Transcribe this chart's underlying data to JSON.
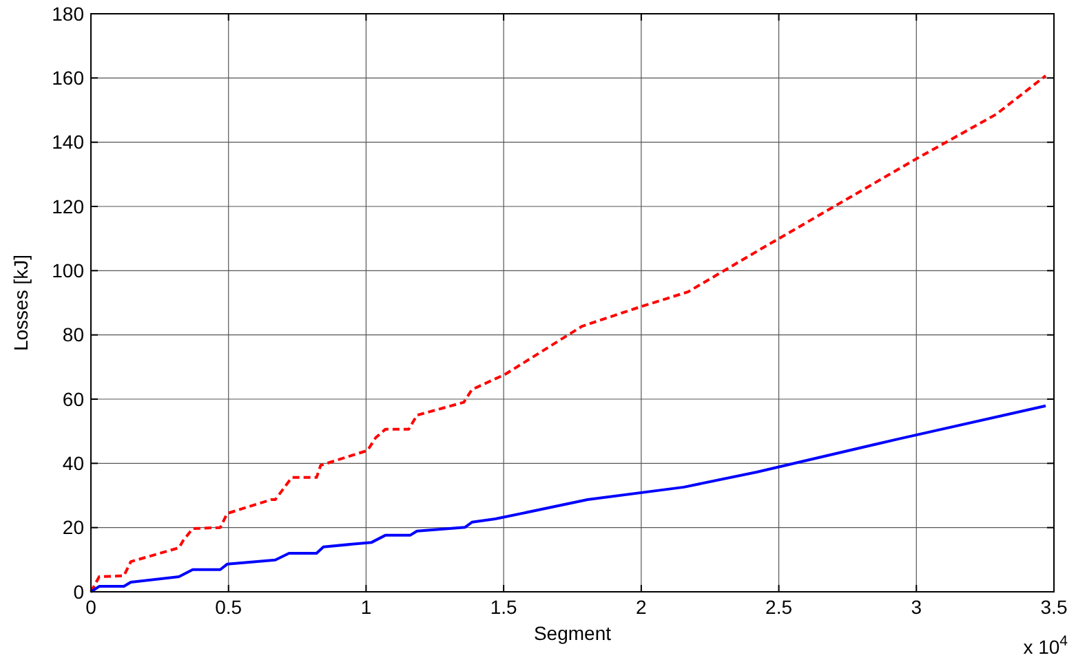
{
  "chart_data": {
    "type": "line",
    "xlabel": "Segment",
    "ylabel": "Losses [kJ]",
    "annotations": [
      "x 10$^{4}$"
    ],
    "xlim": [
      0,
      3.5
    ],
    "xticks": [
      0,
      0.5,
      1,
      1.5,
      2,
      2.5,
      3,
      3.5
    ],
    "ylim": [
      0,
      180
    ],
    "yticks": [
      0,
      20,
      40,
      60,
      80,
      100,
      120,
      140,
      160,
      180
    ],
    "grid": true,
    "series": [
      {
        "color": "#ff0000",
        "line_style": "dashed",
        "x": [
          0,
          0.03,
          0.12,
          0.145,
          0.32,
          0.335,
          0.37,
          0.47,
          0.495,
          0.655,
          0.67,
          0.73,
          0.82,
          0.835,
          1.005,
          1.035,
          1.07,
          1.155,
          1.185,
          1.355,
          1.385,
          1.505,
          1.785,
          1.995,
          2.17,
          2.42,
          2.995,
          3.29,
          3.47
        ],
        "values": [
          0,
          4.7,
          5,
          9.4,
          13.7,
          15.9,
          19.7,
          20,
          24.4,
          28.7,
          28.7,
          35.6,
          35.6,
          39.4,
          44,
          48,
          50.6,
          50.6,
          55,
          59,
          63,
          67.7,
          82.7,
          88.7,
          93.4,
          106,
          134.6,
          148.7,
          160.7
        ]
      },
      {
        "color": "#0000ff",
        "line_style": "solid",
        "x": [
          0,
          0.03,
          0.12,
          0.145,
          0.32,
          0.37,
          0.47,
          0.495,
          0.67,
          0.72,
          0.82,
          0.845,
          1.02,
          1.07,
          1.16,
          1.185,
          1.36,
          1.385,
          1.47,
          1.805,
          2.155,
          2.42,
          2.935,
          3.47
        ],
        "values": [
          0,
          1.7,
          1.7,
          3,
          4.7,
          6.9,
          6.9,
          8.6,
          9.9,
          12,
          12,
          14,
          15.4,
          17.6,
          17.6,
          18.9,
          20.1,
          21.7,
          22.7,
          28.7,
          32.6,
          37.3,
          47.6,
          57.9
        ]
      }
    ]
  }
}
